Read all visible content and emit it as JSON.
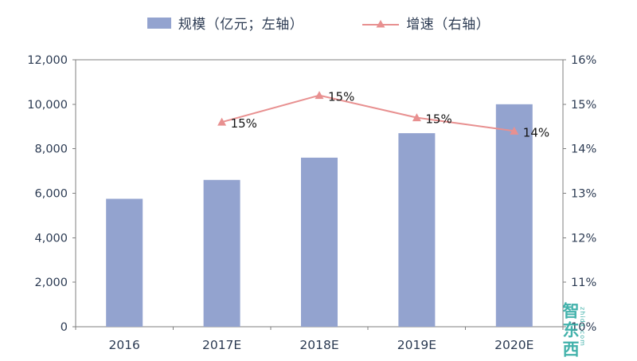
{
  "chart_data": {
    "type": "bar",
    "combo": "bar+line",
    "categories": [
      "2016",
      "2017E",
      "2018E",
      "2019E",
      "2020E"
    ],
    "series": [
      {
        "name": "规模（亿元；左轴）",
        "type": "bar",
        "axis": "left",
        "color": "#93a3cf",
        "values": [
          5750,
          6600,
          7600,
          8700,
          10000
        ]
      },
      {
        "name": "增速（右轴）",
        "type": "line",
        "axis": "right",
        "color": "#e89090",
        "values": [
          null,
          14.6,
          15.2,
          14.7,
          14.4
        ],
        "point_labels": [
          "",
          "15%",
          "15%",
          "15%",
          "14%"
        ]
      }
    ],
    "left_axis": {
      "min": 0,
      "max": 12000,
      "step": 2000,
      "tick_labels": [
        "0",
        "2,000",
        "4,000",
        "6,000",
        "8,000",
        "10,000",
        "12,000"
      ]
    },
    "right_axis": {
      "min": 10,
      "max": 16,
      "step": 1,
      "tick_labels": [
        "10%",
        "11%",
        "12%",
        "13%",
        "14%",
        "15%",
        "16%"
      ]
    },
    "title": "",
    "xlabel": "",
    "ylabel": "",
    "legend_position": "top",
    "grid": false
  },
  "watermark": {
    "text": "智东西",
    "subtext": "zhidx.com",
    "color": "#2faaa3"
  }
}
